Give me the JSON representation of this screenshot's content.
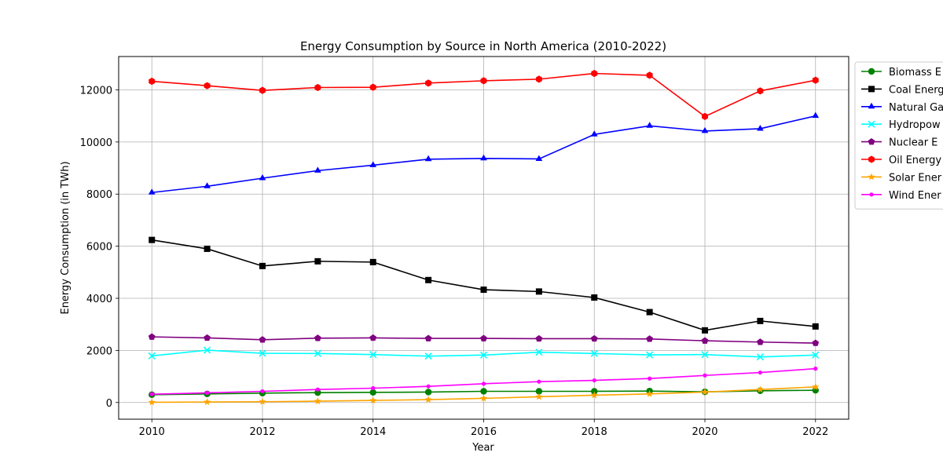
{
  "chart_data": {
    "type": "line",
    "title": "Energy Consumption by Source in North America (2010-2022)",
    "xlabel": "Year",
    "ylabel": "Energy Consumption (in TWh)",
    "x": [
      2010,
      2011,
      2012,
      2013,
      2014,
      2015,
      2016,
      2017,
      2018,
      2019,
      2020,
      2021,
      2022
    ],
    "xticks": [
      2010,
      2012,
      2014,
      2016,
      2018,
      2020,
      2022
    ],
    "yticks": [
      0,
      2000,
      4000,
      6000,
      8000,
      10000,
      12000
    ],
    "xlim": [
      2009.4,
      2022.6
    ],
    "ylim": [
      -640,
      13280
    ],
    "grid": true,
    "legend_position": "outside-right",
    "series": [
      {
        "name": "Biomass E",
        "color": "#008000",
        "marker": "circle",
        "values": [
          300,
          330,
          360,
          380,
          390,
          400,
          430,
          430,
          430,
          440,
          410,
          450,
          470
        ]
      },
      {
        "name": "Coal Energ",
        "color": "#000000",
        "marker": "square",
        "values": [
          6240,
          5900,
          5240,
          5420,
          5390,
          4700,
          4330,
          4260,
          4030,
          3470,
          2770,
          3130,
          2920
        ]
      },
      {
        "name": "Natural Ga",
        "color": "#0000ff",
        "marker": "triangle",
        "values": [
          8060,
          8300,
          8610,
          8900,
          9110,
          9340,
          9370,
          9350,
          10290,
          10620,
          10420,
          10510,
          11000
        ]
      },
      {
        "name": "Hydropow",
        "color": "#00ffff",
        "marker": "x",
        "values": [
          1790,
          2010,
          1890,
          1880,
          1840,
          1780,
          1820,
          1930,
          1880,
          1830,
          1840,
          1750,
          1820
        ]
      },
      {
        "name": "Nuclear E",
        "color": "#800080",
        "marker": "pentagon",
        "values": [
          2520,
          2480,
          2410,
          2470,
          2480,
          2460,
          2460,
          2450,
          2450,
          2440,
          2370,
          2320,
          2280
        ]
      },
      {
        "name": "Oil Energy",
        "color": "#ff0000",
        "marker": "hexagon",
        "values": [
          12330,
          12160,
          11980,
          12090,
          12100,
          12260,
          12350,
          12410,
          12630,
          12560,
          10980,
          11960,
          12370
        ]
      },
      {
        "name": "Solar Ener",
        "color": "#ffa500",
        "marker": "star",
        "values": [
          10,
          20,
          30,
          50,
          80,
          110,
          160,
          220,
          280,
          330,
          400,
          500,
          600
        ]
      },
      {
        "name": "Wind Ener",
        "color": "#ff00ff",
        "marker": "dot",
        "values": [
          320,
          370,
          430,
          500,
          550,
          620,
          720,
          800,
          850,
          920,
          1040,
          1150,
          1300
        ]
      }
    ]
  }
}
